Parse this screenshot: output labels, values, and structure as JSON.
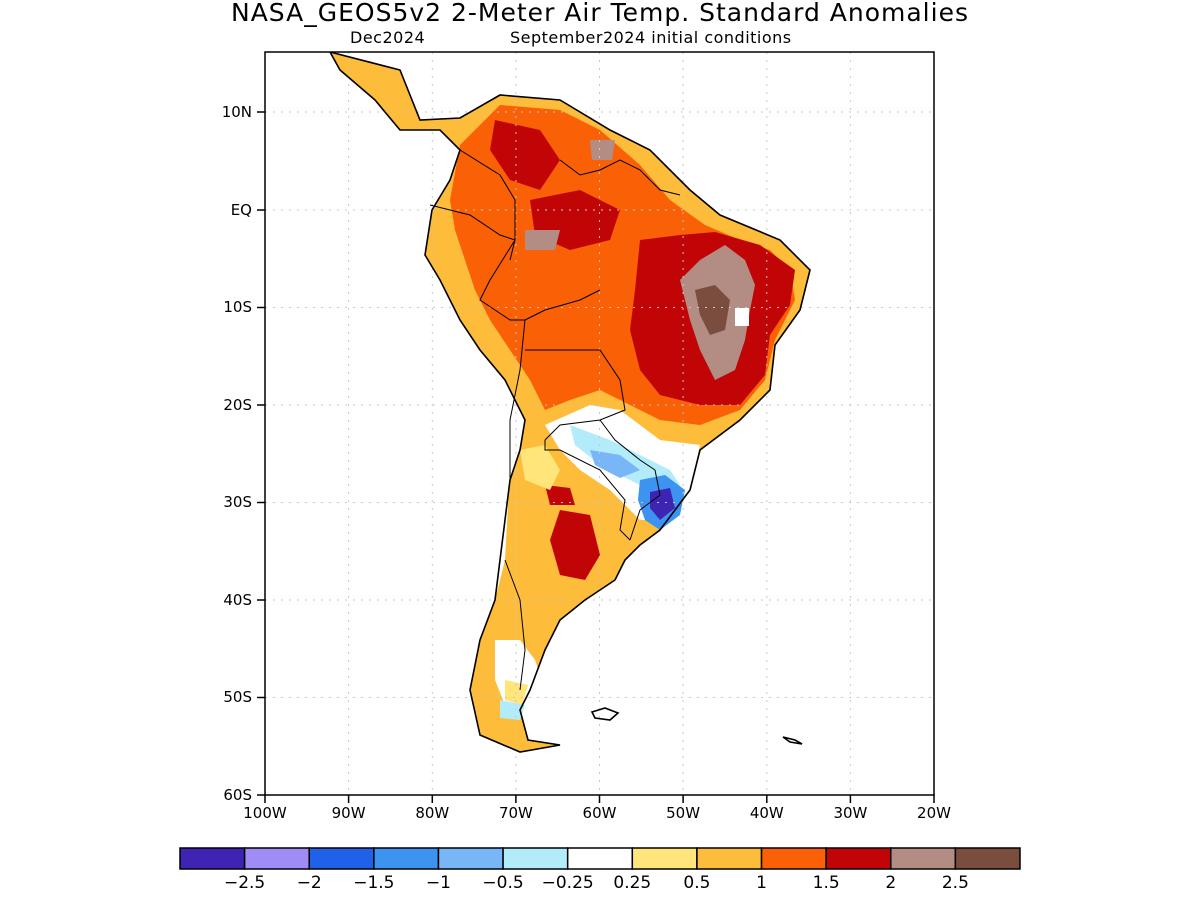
{
  "title": "NASA_GEOS5v2 2-Meter Air Temp. Standard Anomalies",
  "subtitle_left": "Dec2024",
  "subtitle_right": "September2024 initial conditions",
  "axes": {
    "lon_labels": [
      "100W",
      "90W",
      "80W",
      "70W",
      "60W",
      "50W",
      "40W",
      "30W",
      "20W"
    ],
    "lat_labels": [
      "10N",
      "EQ",
      "10S",
      "20S",
      "30S",
      "40S",
      "50S",
      "60S"
    ]
  },
  "colorbar": {
    "colors": [
      "#3f24b3",
      "#9f8cf5",
      "#1f62e9",
      "#3c93f0",
      "#78b6f8",
      "#b2ecfb",
      "#ffffff",
      "#ffe57a",
      "#fdbd3a",
      "#fa6106",
      "#c10507",
      "#b38d83",
      "#7a4d3f"
    ],
    "labels": [
      "-2.5",
      "-2",
      "-1.5",
      "-1",
      "-0.5",
      "-0.25",
      "0.25",
      "0.5",
      "1",
      "1.5",
      "2",
      "2.5"
    ]
  }
}
